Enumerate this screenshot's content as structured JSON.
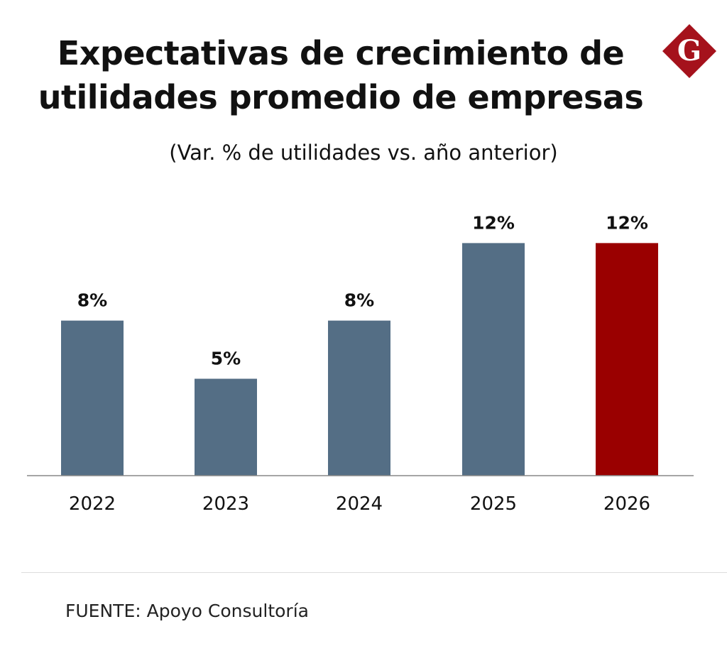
{
  "chart_data": {
    "type": "bar",
    "title": "Expectativas de crecimiento de utilidades promedio de empresas",
    "subtitle": "(Var. % de utilidades vs. año anterior)",
    "categories": [
      "2022",
      "2023",
      "2024",
      "2025",
      "2026"
    ],
    "values": [
      8,
      5,
      8,
      12,
      12
    ],
    "data_labels": [
      "8%",
      "5%",
      "8%",
      "12%",
      "12%"
    ],
    "colors": [
      "#546e85",
      "#546e85",
      "#546e85",
      "#546e85",
      "#9a0000"
    ],
    "xlabel": "",
    "ylabel": "",
    "ylim": [
      0,
      13
    ],
    "grid": false,
    "legend": "none"
  },
  "source": "FUENTE: Apoyo Consultoría",
  "logo": {
    "letter": "G",
    "color": "#a5121c"
  }
}
